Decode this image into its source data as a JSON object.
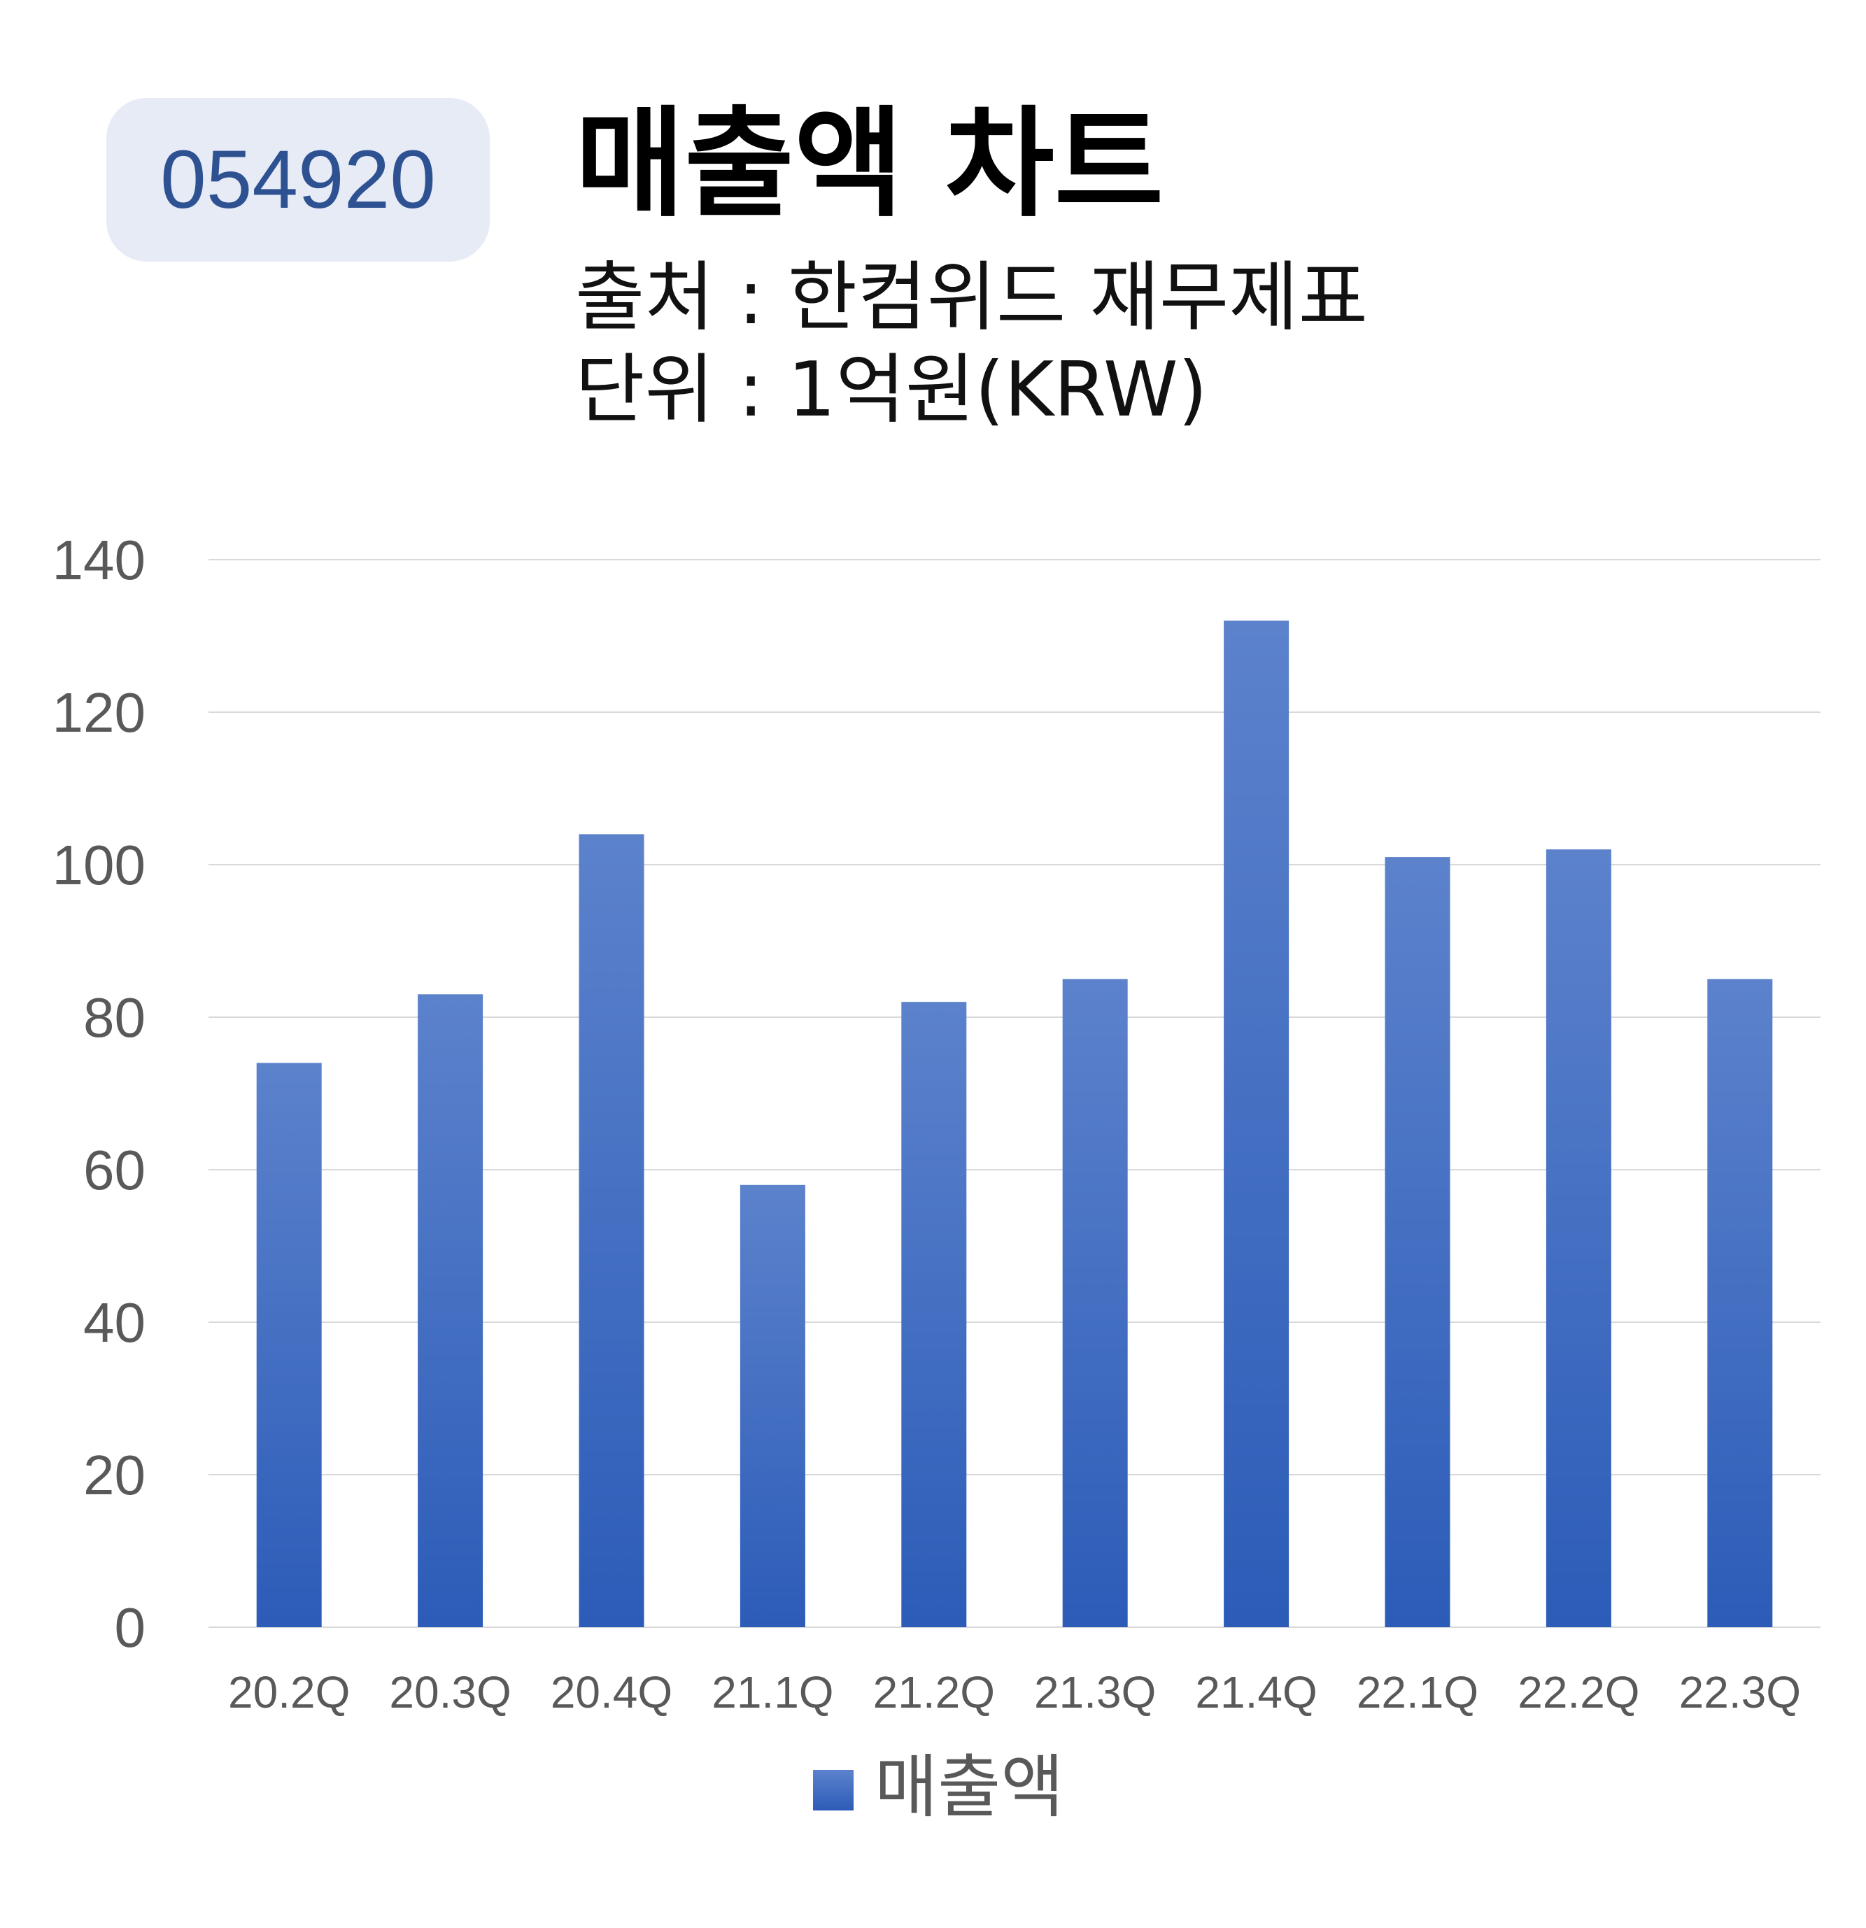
{
  "header": {
    "code": "054920",
    "title": "매출액 차트",
    "source": "출처 : 한컴위드 재무제표",
    "unit": "단위 : 1억원(KRW)"
  },
  "chart_data": {
    "type": "bar",
    "categories": [
      "20.2Q",
      "20.3Q",
      "20.4Q",
      "21.1Q",
      "21.2Q",
      "21.3Q",
      "21.4Q",
      "22.1Q",
      "22.2Q",
      "22.3Q"
    ],
    "series": [
      {
        "name": "매출액",
        "values": [
          74,
          83,
          104,
          58,
          82,
          85,
          132,
          101,
          102,
          85
        ]
      }
    ],
    "ylim": [
      0,
      140
    ],
    "yticks": [
      0,
      20,
      40,
      60,
      80,
      100,
      120,
      140
    ],
    "grid": true,
    "legend": "bottom",
    "colors": {
      "bar_top": "#5c82cc",
      "bar_bottom": "#2c5cb8",
      "grid": "#d9d9d9",
      "tick": "#595959"
    }
  }
}
